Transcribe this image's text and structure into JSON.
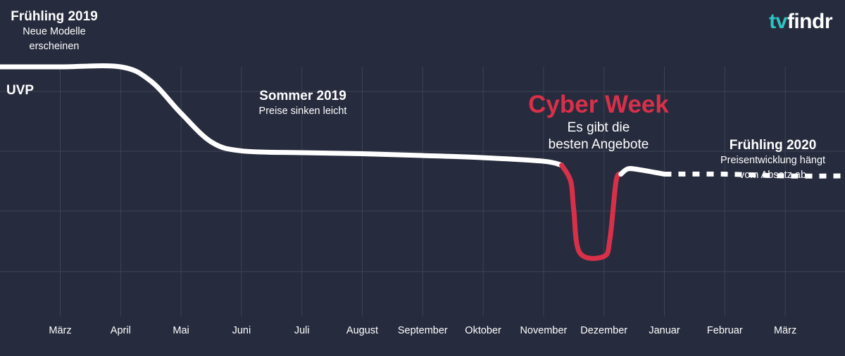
{
  "brand": {
    "part1": "tv",
    "part2": "findr",
    "accent": "#2ec4c4"
  },
  "labels": {
    "uvp": "UVP"
  },
  "annotations": {
    "spring2019": {
      "title": "Frühling 2019",
      "line1": "Neue Modelle",
      "line2": "erscheinen"
    },
    "summer2019": {
      "title": "Sommer 2019",
      "line1": "Preise sinken leicht"
    },
    "cyber_week": {
      "title": "Cyber Week",
      "line1": "Es gibt die",
      "line2": "besten Angebote",
      "color": "#d9304a"
    },
    "spring2020": {
      "title": "Frühling 2020",
      "line1": "Preisentwicklung hängt",
      "line2": "vom Absatz ab"
    }
  },
  "colors": {
    "background": "#262b3d",
    "line": "#ffffff",
    "highlight": "#d9304a",
    "grid": "#3d4356"
  },
  "chart_data": {
    "type": "line",
    "title": "",
    "x_categories": [
      "März",
      "April",
      "Mai",
      "Juni",
      "Juli",
      "August",
      "September",
      "Oktober",
      "November",
      "Dezember",
      "Januar",
      "Februar",
      "März"
    ],
    "y_unit": "relative price (UVP = 100)",
    "ylim": [
      40,
      100
    ],
    "grid": true,
    "series": [
      {
        "style": "solid",
        "points": [
          [
            -1,
            100
          ],
          [
            0,
            100
          ],
          [
            1,
            100
          ],
          [
            1.5,
            96
          ],
          [
            2,
            87
          ],
          [
            2.5,
            79
          ],
          [
            3,
            76.5
          ],
          [
            4,
            76
          ],
          [
            5,
            75.7
          ],
          [
            6,
            75.2
          ],
          [
            7,
            74.6
          ],
          [
            8,
            73.6
          ],
          [
            8.3,
            72.5
          ]
        ]
      },
      {
        "style": "highlight",
        "points": [
          [
            8.3,
            72.5
          ],
          [
            8.45,
            68
          ],
          [
            8.5,
            60
          ],
          [
            8.6,
            48
          ],
          [
            9,
            47
          ],
          [
            9.1,
            52
          ],
          [
            9.2,
            68
          ],
          [
            9.28,
            70
          ]
        ]
      },
      {
        "style": "solid",
        "points": [
          [
            9.28,
            70
          ],
          [
            9.4,
            71.5
          ],
          [
            9.6,
            71.2
          ],
          [
            10,
            70
          ]
        ]
      },
      {
        "style": "dashed",
        "points": [
          [
            10,
            70
          ],
          [
            11,
            70
          ],
          [
            12,
            69.5
          ],
          [
            13,
            69.5
          ]
        ]
      }
    ]
  }
}
